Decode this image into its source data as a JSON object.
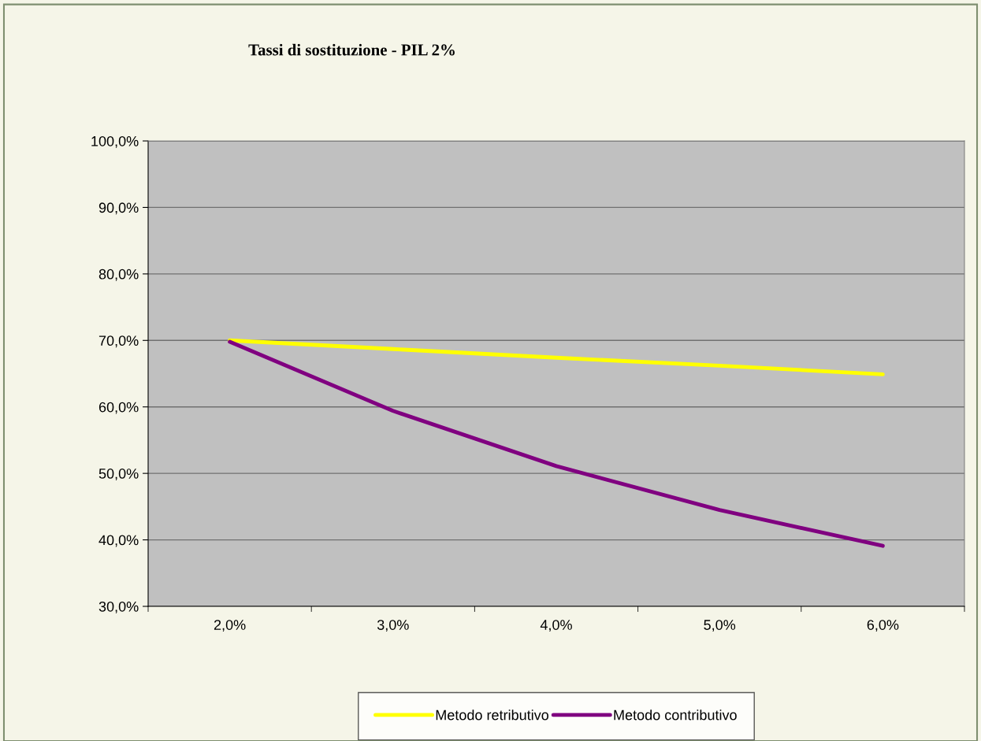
{
  "chart_data": {
    "type": "line",
    "title": "Tassi di sostituzione - PIL 2%",
    "categories": [
      "2,0%",
      "3,0%",
      "4,0%",
      "5,0%",
      "6,0%"
    ],
    "series": [
      {
        "name": "Metodo retributivo",
        "color": "#ffff00",
        "values": [
          70.0,
          68.7,
          67.4,
          66.2,
          64.9
        ]
      },
      {
        "name": "Metodo contributivo",
        "color": "#800080",
        "values": [
          69.8,
          59.4,
          51.1,
          44.5,
          39.1
        ]
      }
    ],
    "ylim": [
      30,
      100
    ],
    "yticks": [
      {
        "value": 30,
        "label": "30,0%"
      },
      {
        "value": 40,
        "label": "40,0%"
      },
      {
        "value": 50,
        "label": "50,0%"
      },
      {
        "value": 60,
        "label": "60,0%"
      },
      {
        "value": 70,
        "label": "70,0%"
      },
      {
        "value": 80,
        "label": "80,0%"
      },
      {
        "value": 90,
        "label": "90,0%"
      },
      {
        "value": 100,
        "label": "100,0%"
      }
    ],
    "grid": "y",
    "legend": "bottom",
    "marker": "none",
    "line_style": "solid"
  }
}
